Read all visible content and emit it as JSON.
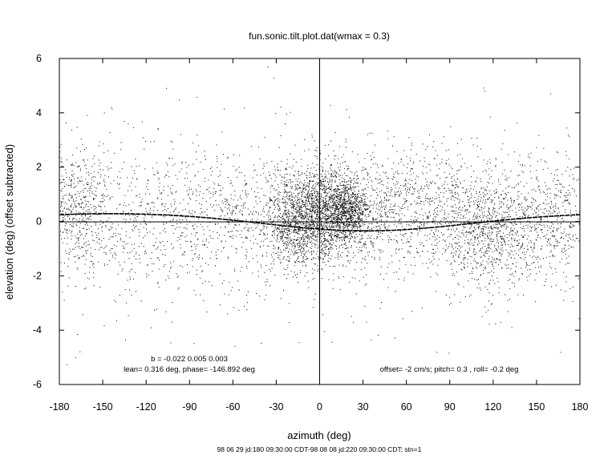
{
  "chart_data": {
    "type": "scatter",
    "title": "fun.sonic.tilt.plot.dat(wmax = 0.3)",
    "xlabel": "azimuth (deg)",
    "ylabel": "elevation (deg)  (offset subtracted)",
    "footer": "98 06 29 jd:180 09:30:00 CDT-98 08 08 jd:220 09:30:00 CDT; stn=1",
    "xlim": [
      -180,
      180
    ],
    "ylim": [
      -6,
      6
    ],
    "x_ticks": [
      -180,
      -150,
      -120,
      -90,
      -60,
      -30,
      0,
      30,
      60,
      90,
      120,
      150,
      180
    ],
    "y_ticks": [
      -6,
      -4,
      -2,
      0,
      2,
      4,
      6
    ],
    "annotations": {
      "coefficients": "b = -0.022  0.005  0.003",
      "lean_phase": "lean= 0.316 deg, phase= -146.892 deg",
      "offsets": "offset= -2 cm/s; pitch=  0.3 , roll= -0.2 deg"
    },
    "zero_lines": {
      "horizontal_at_y": 0,
      "vertical_at_x": 0
    },
    "fit_curve": {
      "a0": -0.022,
      "a1": 0.005,
      "a2": 0.003,
      "lean_deg": 0.316,
      "phase_deg": -146.892
    },
    "scatter_clusters": [
      {
        "x_center": 0,
        "x_spread": 16,
        "y_center": 0.3,
        "y_spread": 0.9,
        "count": 1700
      },
      {
        "x_center": 18,
        "x_spread": 8,
        "y_center": 0.4,
        "y_spread": 0.5,
        "count": 700
      },
      {
        "x_center": -18,
        "x_spread": 10,
        "y_center": 0.0,
        "y_spread": 0.8,
        "count": 500
      },
      {
        "x_center": 55,
        "x_spread": 28,
        "y_center": 0.5,
        "y_spread": 1.0,
        "count": 900
      },
      {
        "x_center": 118,
        "x_spread": 18,
        "y_center": -0.3,
        "y_spread": 1.0,
        "count": 900
      },
      {
        "x_center": -170,
        "x_spread": 12,
        "y_center": 0.5,
        "y_spread": 1.0,
        "count": 450
      },
      {
        "x_center": -60,
        "x_spread": 28,
        "y_center": 0.2,
        "y_spread": 1.1,
        "count": 450
      },
      {
        "x_center": -130,
        "x_spread": 30,
        "y_center": 0.0,
        "y_spread": 1.3,
        "count": 400
      },
      {
        "x_center": 160,
        "x_spread": 15,
        "y_center": 0.2,
        "y_spread": 1.0,
        "count": 350
      }
    ],
    "background_points": 900,
    "marker_color": "#000000"
  }
}
